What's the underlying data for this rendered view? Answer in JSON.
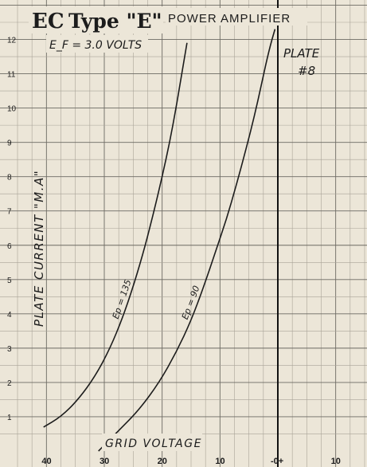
{
  "chart_data": {
    "type": "line",
    "title_logo": "EC",
    "title": "Type \"E\"",
    "title_right": "POWER AMPLIFIER",
    "subtitle": "E_F = 3.0 VOLTS",
    "subtitle_sub": "F",
    "annotation_plate": "PLATE",
    "annotation_plate_no": "#8",
    "xlabel": "GRID VOLTAGE",
    "ylabel": "PLATE CURRENT \"M.A\"",
    "xlim": [
      -45,
      15
    ],
    "ylim": [
      0,
      12.5
    ],
    "x_ticks": [
      {
        "value": -40,
        "label": "40"
      },
      {
        "value": -30,
        "label": "30"
      },
      {
        "value": -20,
        "label": "20"
      },
      {
        "value": -10,
        "label": "10"
      },
      {
        "value": 0,
        "label": "-0+"
      },
      {
        "value": 10,
        "label": "10"
      }
    ],
    "y_ticks": [
      {
        "value": 1,
        "label": "1"
      },
      {
        "value": 2,
        "label": "2"
      },
      {
        "value": 3,
        "label": "3"
      },
      {
        "value": 4,
        "label": "4"
      },
      {
        "value": 5,
        "label": "5"
      },
      {
        "value": 6,
        "label": "6"
      },
      {
        "value": 7,
        "label": "7"
      },
      {
        "value": 8,
        "label": "8"
      },
      {
        "value": 9,
        "label": "9"
      },
      {
        "value": 10,
        "label": "10"
      },
      {
        "value": 11,
        "label": "11"
      },
      {
        "value": 12,
        "label": "12"
      }
    ],
    "grid": true,
    "series": [
      {
        "name": "Ep = 135",
        "color": "#1c1c1c",
        "x": [
          -40.5,
          -37.5,
          -34.5,
          -31.5,
          -29,
          -26.8,
          -24.8,
          -22.9,
          -21.4,
          -20,
          -18.7,
          -17.6,
          -16.6,
          -15.7
        ],
        "y": [
          0.7,
          1.0,
          1.5,
          2.2,
          3.0,
          3.9,
          4.9,
          6.0,
          7.0,
          8.0,
          9.0,
          10.0,
          11.0,
          11.9
        ]
      },
      {
        "name": "Ep = 90",
        "color": "#1c1c1c",
        "x": [
          -31,
          -27.5,
          -24,
          -20.5,
          -17.5,
          -15,
          -12.8,
          -10.8,
          -8.8,
          -7.1,
          -5.5,
          -4,
          -2.7,
          -1.5,
          -0.5
        ],
        "y": [
          0.0,
          0.6,
          1.2,
          2.0,
          2.9,
          3.8,
          4.8,
          5.8,
          6.8,
          7.8,
          8.8,
          9.8,
          10.8,
          11.7,
          12.3
        ]
      }
    ]
  }
}
